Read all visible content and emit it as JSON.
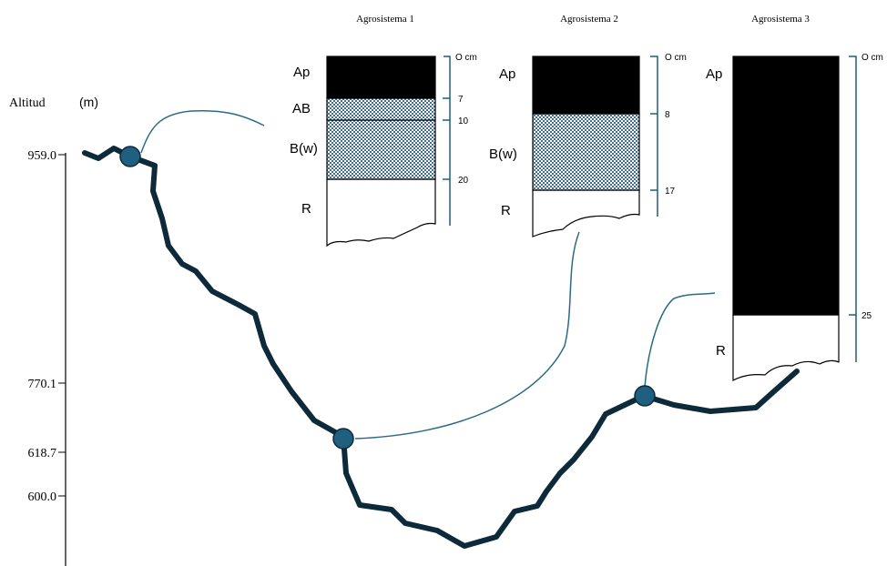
{
  "axis": {
    "title": "Altitud",
    "unit": "(m)",
    "ticks": [
      "959.0",
      "770.1",
      "618.7",
      "600.0"
    ]
  },
  "profiles": [
    {
      "title": "Agrosistema 1",
      "horizons": [
        "Ap",
        "AB",
        "B(w)",
        "R"
      ],
      "depths": [
        "O cm",
        "7",
        "10",
        "20"
      ]
    },
    {
      "title": "Agrosistema 2",
      "horizons": [
        "Ap",
        "B(w)",
        "R"
      ],
      "depths": [
        "O cm",
        "8",
        "17"
      ]
    },
    {
      "title": "Agrosistema 3",
      "horizons": [
        "Ap",
        "R"
      ],
      "depths": [
        "O cm",
        "25"
      ]
    }
  ]
}
